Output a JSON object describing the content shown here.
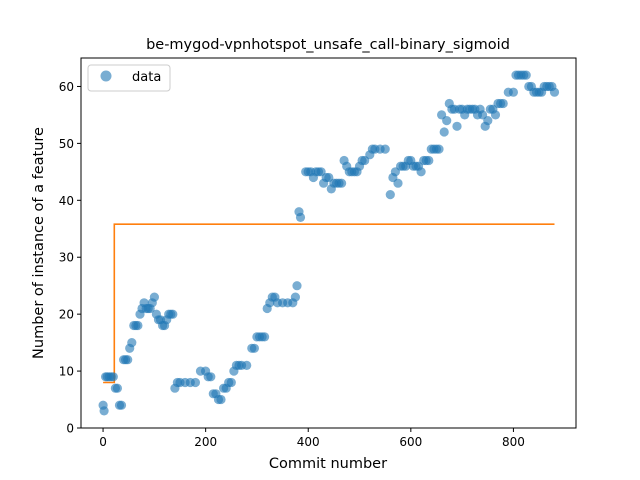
{
  "chart_data": {
    "type": "scatter",
    "title": "be-mygod-vpnhotspot_unsafe_call-binary_sigmoid",
    "xlabel": "Commit number",
    "ylabel": "Number of instance of a feature",
    "xlim": [
      -43,
      922
    ],
    "ylim": [
      0,
      65
    ],
    "xticks": [
      0,
      200,
      400,
      600,
      800
    ],
    "yticks": [
      0,
      10,
      20,
      30,
      40,
      50,
      60
    ],
    "grid": false,
    "legend": {
      "placement": "top-left",
      "entries": [
        "data"
      ]
    },
    "series": [
      {
        "name": "data",
        "kind": "scatter",
        "color": "#1f77b4",
        "x": [
          0,
          2,
          5,
          8,
          12,
          16,
          20,
          24,
          28,
          32,
          36,
          40,
          44,
          48,
          52,
          56,
          60,
          64,
          68,
          72,
          76,
          80,
          84,
          88,
          92,
          96,
          100,
          104,
          108,
          112,
          116,
          120,
          124,
          128,
          132,
          136,
          140,
          145,
          150,
          160,
          170,
          180,
          190,
          200,
          205,
          210,
          215,
          220,
          225,
          230,
          235,
          240,
          245,
          250,
          255,
          260,
          265,
          270,
          280,
          290,
          295,
          300,
          305,
          310,
          315,
          320,
          325,
          330,
          335,
          340,
          350,
          360,
          370,
          375,
          378,
          382,
          385,
          395,
          400,
          405,
          410,
          415,
          420,
          425,
          430,
          435,
          440,
          445,
          450,
          455,
          460,
          465,
          470,
          475,
          480,
          485,
          490,
          495,
          500,
          505,
          510,
          520,
          525,
          530,
          540,
          550,
          560,
          565,
          570,
          575,
          580,
          585,
          590,
          595,
          600,
          605,
          610,
          615,
          620,
          625,
          630,
          635,
          640,
          645,
          650,
          655,
          660,
          665,
          670,
          675,
          680,
          685,
          690,
          695,
          700,
          705,
          710,
          715,
          720,
          725,
          730,
          735,
          740,
          745,
          750,
          755,
          760,
          765,
          770,
          775,
          780,
          790,
          800,
          805,
          810,
          815,
          820,
          825,
          830,
          835,
          840,
          845,
          850,
          855,
          860,
          865,
          870,
          875,
          880
        ],
        "y": [
          4,
          3,
          9,
          9,
          9,
          9,
          9,
          7,
          7,
          4,
          4,
          12,
          12,
          12,
          14,
          15,
          18,
          18,
          18,
          20,
          21,
          22,
          21,
          21,
          21,
          22,
          23,
          20,
          19,
          19,
          18,
          18,
          19,
          20,
          20,
          20,
          7,
          8,
          8,
          8,
          8,
          8,
          10,
          10,
          9,
          9,
          6,
          6,
          5,
          5,
          7,
          7,
          8,
          8,
          10,
          11,
          11,
          11,
          11,
          14,
          14,
          16,
          16,
          16,
          16,
          21,
          22,
          23,
          23,
          22,
          22,
          22,
          22,
          23,
          25,
          38,
          37,
          45,
          45,
          45,
          44,
          45,
          45,
          45,
          43,
          44,
          44,
          42,
          43,
          43,
          43,
          43,
          47,
          46,
          45,
          45,
          45,
          45,
          46,
          47,
          47,
          48,
          49,
          49,
          49,
          49,
          41,
          44,
          45,
          43,
          46,
          46,
          46,
          47,
          47,
          46,
          46,
          46,
          45,
          47,
          47,
          47,
          49,
          49,
          49,
          49,
          55,
          52,
          54,
          57,
          56,
          56,
          53,
          56,
          56,
          55,
          56,
          56,
          56,
          56,
          55,
          56,
          55,
          53,
          54,
          56,
          56,
          55,
          57,
          57,
          57,
          59,
          59,
          62,
          62,
          62,
          62,
          62,
          60,
          60,
          59,
          59,
          59,
          59,
          60,
          60,
          60,
          60,
          59
        ]
      },
      {
        "name": "",
        "kind": "step",
        "color": "#ff7f0e",
        "x": [
          0,
          22,
          22,
          880
        ],
        "y": [
          8,
          8,
          35.8,
          35.8
        ]
      }
    ]
  }
}
